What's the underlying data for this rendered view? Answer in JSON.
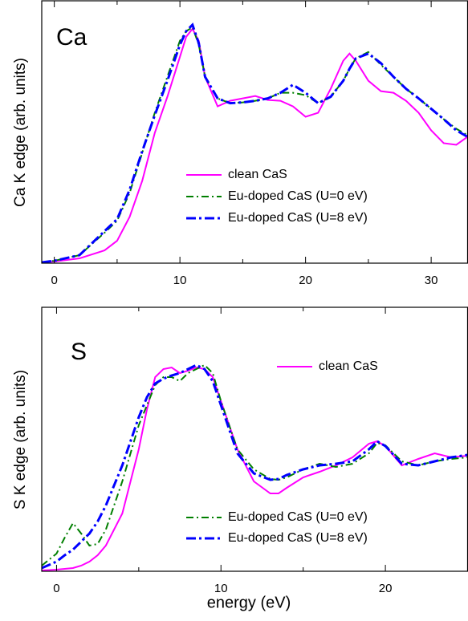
{
  "chart_data": [
    {
      "type": "line",
      "title": "Ca",
      "y_label": "Ca K edge   (arb. units)",
      "xlim": [
        -1,
        32.9
      ],
      "xticks": [
        0,
        10,
        20,
        30
      ],
      "xminorticks": [
        5,
        15,
        25
      ],
      "ylim": [
        0,
        328
      ],
      "x": [
        -1,
        0,
        2,
        4,
        5,
        6,
        7,
        8,
        9,
        10,
        10.5,
        11,
        11.5,
        12,
        13,
        14,
        15,
        16,
        17,
        18,
        19,
        20,
        21,
        22,
        23,
        23.5,
        24,
        25,
        26,
        27,
        28,
        29,
        30,
        31,
        32,
        32.9
      ],
      "series": [
        {
          "name": "clean CaS",
          "color": "#ff00ff",
          "linestyle": "solid",
          "values": [
            1,
            2,
            6,
            16,
            28,
            58,
            103,
            163,
            208,
            258,
            283,
            293,
            278,
            233,
            196,
            203,
            206,
            209,
            204,
            203,
            196,
            183,
            188,
            218,
            253,
            262,
            253,
            228,
            215,
            213,
            203,
            188,
            166,
            150,
            148,
            158
          ]
        },
        {
          "name": "Eu-doped CaS (U=0 eV)",
          "color": "#007f00",
          "linestyle": "dashdot",
          "values": [
            1,
            3,
            10,
            38,
            53,
            88,
            138,
            188,
            233,
            278,
            290,
            295,
            273,
            233,
            206,
            200,
            201,
            203,
            206,
            213,
            213,
            210,
            200,
            208,
            228,
            243,
            256,
            264,
            248,
            233,
            218,
            206,
            193,
            180,
            168,
            160
          ]
        },
        {
          "name": "Eu-doped CaS (U=8 eV)",
          "color": "#0000ff",
          "linestyle": "dashdotbold",
          "values": [
            1,
            3,
            10,
            40,
            55,
            92,
            140,
            185,
            228,
            273,
            290,
            298,
            275,
            233,
            206,
            200,
            201,
            203,
            206,
            213,
            223,
            213,
            200,
            208,
            228,
            243,
            256,
            262,
            250,
            233,
            218,
            206,
            193,
            180,
            166,
            158
          ]
        }
      ]
    },
    {
      "type": "line",
      "title": "S",
      "y_label": "S K edge   (arb. units)",
      "x_label": "energy    (eV)",
      "xlim": [
        -0.9,
        25
      ],
      "xticks": [
        0,
        10,
        20
      ],
      "xminorticks": [
        5,
        15,
        25
      ],
      "ylim": [
        0,
        329
      ],
      "x": [
        -0.9,
        0,
        0.5,
        1,
        1.5,
        2,
        2.5,
        3,
        4,
        5,
        5.5,
        6,
        6.5,
        7,
        7.5,
        8,
        8.5,
        9,
        9.5,
        10,
        11,
        12,
        13,
        13.5,
        14,
        15,
        16,
        17,
        18,
        19,
        19.5,
        20,
        21,
        22,
        23,
        24,
        25
      ],
      "series": [
        {
          "name": "clean CaS",
          "color": "#ff00ff",
          "linestyle": "solid",
          "values": [
            1,
            2,
            3,
            4,
            7,
            12,
            20,
            32,
            72,
            152,
            202,
            242,
            252,
            254,
            247,
            250,
            254,
            252,
            242,
            212,
            152,
            112,
            97,
            97,
            104,
            117,
            124,
            132,
            142,
            159,
            162,
            156,
            132,
            140,
            147,
            142,
            144
          ]
        },
        {
          "name": "Eu-doped CaS (U=0 eV)",
          "color": "#007f00",
          "linestyle": "dashdot",
          "values": [
            7,
            22,
            42,
            60,
            47,
            32,
            34,
            52,
            112,
            182,
            207,
            232,
            242,
            242,
            237,
            247,
            252,
            257,
            247,
            212,
            152,
            127,
            115,
            114,
            117,
            127,
            134,
            130,
            134,
            147,
            160,
            157,
            137,
            132,
            137,
            140,
            142
          ]
        },
        {
          "name": "Eu-doped CaS (U=8 eV)",
          "color": "#0000ff",
          "linestyle": "dashdotbold",
          "values": [
            4,
            12,
            20,
            27,
            37,
            47,
            62,
            82,
            132,
            192,
            217,
            234,
            240,
            244,
            247,
            252,
            257,
            252,
            237,
            207,
            147,
            122,
            114,
            115,
            120,
            127,
            132,
            134,
            137,
            152,
            162,
            156,
            134,
            132,
            137,
            142,
            145
          ]
        }
      ]
    }
  ]
}
